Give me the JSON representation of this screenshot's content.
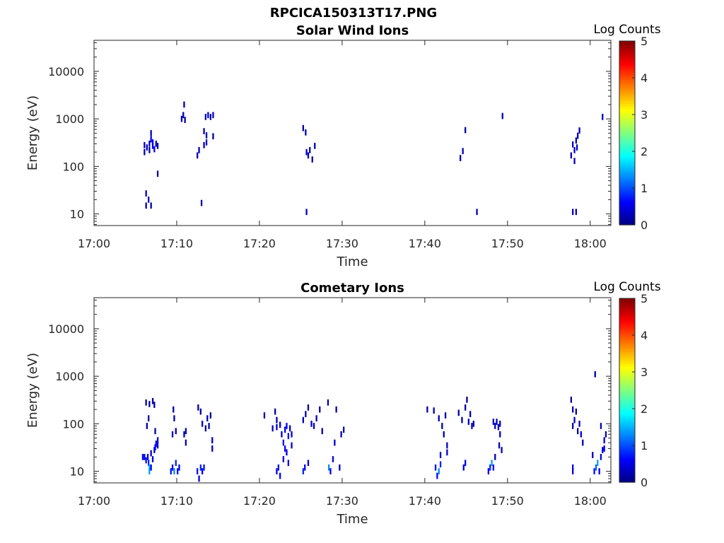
{
  "figure": {
    "title": "RPCICA150313T17.PNG",
    "colors": {
      "axis": "#262626",
      "background": "#ffffff"
    }
  },
  "chart_data": [
    {
      "type": "heatmap",
      "title": "Solar Wind Ions",
      "xlabel": "Time",
      "ylabel": "Energy (eV)",
      "x_unit": "minutes after 17:00",
      "x_ticks": [
        "17:00",
        "17:10",
        "17:20",
        "17:30",
        "17:40",
        "17:50",
        "18:00"
      ],
      "x_tick_values": [
        0,
        10,
        20,
        30,
        40,
        50,
        60
      ],
      "xlim": [
        0,
        62.5
      ],
      "y_scale": "log",
      "y_ticks": [
        "10",
        "100",
        "1000",
        "10000"
      ],
      "y_tick_values": [
        10,
        100,
        1000,
        10000
      ],
      "ylim": [
        5.7,
        45000
      ],
      "colorbar": {
        "label": "Log Counts",
        "range": [
          0,
          5
        ],
        "ticks": [
          "0",
          "1",
          "2",
          "3",
          "4",
          "5"
        ],
        "colormap": "jet"
      },
      "cells": [
        [
          6.0,
          200,
          0.3
        ],
        [
          6.0,
          280,
          0.3
        ],
        [
          6.3,
          250,
          0.2
        ],
        [
          6.6,
          300,
          0.4
        ],
        [
          6.6,
          220,
          0.3
        ],
        [
          6.8,
          370,
          0.5
        ],
        [
          6.8,
          500,
          0.3
        ],
        [
          7.0,
          270,
          0.6
        ],
        [
          7.0,
          320,
          0.4
        ],
        [
          7.2,
          230,
          0.5
        ],
        [
          7.4,
          300,
          0.3
        ],
        [
          7.6,
          270,
          0.2
        ],
        [
          7.6,
          70,
          0.2
        ],
        [
          6.2,
          27,
          0.3
        ],
        [
          6.2,
          15,
          0.2
        ],
        [
          6.5,
          20,
          0.3
        ],
        [
          6.8,
          15,
          0.2
        ],
        [
          10.5,
          1000,
          0.3
        ],
        [
          10.7,
          1200,
          0.3
        ],
        [
          10.9,
          950,
          0.2
        ],
        [
          10.8,
          2000,
          0.2
        ],
        [
          12.4,
          170,
          0.3
        ],
        [
          12.6,
          220,
          0.3
        ],
        [
          12.9,
          17,
          0.2
        ],
        [
          13.2,
          550,
          0.3
        ],
        [
          13.2,
          280,
          0.2
        ],
        [
          13.5,
          320,
          0.3
        ],
        [
          13.5,
          450,
          0.2
        ],
        [
          13.4,
          1100,
          0.3
        ],
        [
          13.7,
          1200,
          0.4
        ],
        [
          14.0,
          1100,
          0.3
        ],
        [
          14.3,
          1200,
          0.3
        ],
        [
          14.3,
          430,
          0.2
        ],
        [
          25.2,
          640,
          0.2
        ],
        [
          25.5,
          520,
          0.3
        ],
        [
          25.6,
          200,
          0.4
        ],
        [
          25.8,
          170,
          0.3
        ],
        [
          26.0,
          220,
          0.3
        ],
        [
          26.3,
          140,
          0.2
        ],
        [
          26.6,
          270,
          0.3
        ],
        [
          25.6,
          11,
          0.3
        ],
        [
          44.2,
          150,
          0.3
        ],
        [
          44.5,
          210,
          0.3
        ],
        [
          44.8,
          580,
          0.2
        ],
        [
          46.2,
          11,
          0.3
        ],
        [
          49.3,
          1150,
          0.3
        ],
        [
          57.6,
          170,
          0.3
        ],
        [
          57.8,
          290,
          0.4
        ],
        [
          58.0,
          220,
          0.5
        ],
        [
          58.2,
          350,
          0.3
        ],
        [
          58.3,
          250,
          0.3
        ],
        [
          58.4,
          440,
          0.3
        ],
        [
          58.6,
          570,
          0.3
        ],
        [
          58.0,
          130,
          0.3
        ],
        [
          57.8,
          11,
          0.3
        ],
        [
          58.2,
          11,
          0.3
        ],
        [
          61.4,
          1100,
          0.3
        ]
      ]
    },
    {
      "type": "heatmap",
      "title": "Cometary Ions",
      "xlabel": "Time",
      "ylabel": "Energy (eV)",
      "x_unit": "minutes after 17:00",
      "x_ticks": [
        "17:00",
        "17:10",
        "17:20",
        "17:30",
        "17:40",
        "17:50",
        "18:00"
      ],
      "x_tick_values": [
        0,
        10,
        20,
        30,
        40,
        50,
        60
      ],
      "xlim": [
        0,
        62.5
      ],
      "y_scale": "log",
      "y_ticks": [
        "10",
        "100",
        "1000",
        "10000"
      ],
      "y_tick_values": [
        10,
        100,
        1000,
        10000
      ],
      "ylim": [
        5.7,
        45000
      ],
      "colorbar": {
        "label": "Log Counts",
        "range": [
          0,
          5
        ],
        "ticks": [
          "0",
          "1",
          "2",
          "3",
          "4",
          "5"
        ],
        "colormap": "jet"
      },
      "cells": [
        [
          5.8,
          20,
          0.6
        ],
        [
          6.0,
          20,
          0.5
        ],
        [
          6.2,
          17,
          0.7
        ],
        [
          6.4,
          20,
          0.5
        ],
        [
          6.5,
          15,
          0.8
        ],
        [
          6.6,
          12,
          1.5
        ],
        [
          6.6,
          10,
          1.4
        ],
        [
          6.8,
          12,
          0.6
        ],
        [
          6.8,
          24,
          0.4
        ],
        [
          7.0,
          18,
          0.5
        ],
        [
          7.2,
          28,
          0.4
        ],
        [
          7.3,
          32,
          0.6
        ],
        [
          7.4,
          38,
          0.6
        ],
        [
          7.6,
          45,
          0.4
        ],
        [
          7.6,
          35,
          0.4
        ],
        [
          6.2,
          280,
          0.2
        ],
        [
          6.6,
          260,
          0.2
        ],
        [
          7.0,
          300,
          0.2
        ],
        [
          7.2,
          250,
          0.2
        ],
        [
          6.5,
          130,
          0.2
        ],
        [
          6.3,
          90,
          0.2
        ],
        [
          7.3,
          70,
          0.2
        ],
        [
          9.2,
          10,
          0.7
        ],
        [
          9.4,
          12,
          0.6
        ],
        [
          9.6,
          10,
          1.3
        ],
        [
          9.8,
          15,
          0.8
        ],
        [
          10.0,
          10,
          0.6
        ],
        [
          10.2,
          12,
          0.6
        ],
        [
          9.4,
          60,
          0.2
        ],
        [
          9.8,
          70,
          0.2
        ],
        [
          9.5,
          200,
          0.2
        ],
        [
          9.6,
          130,
          0.2
        ],
        [
          10.8,
          60,
          0.2
        ],
        [
          11.0,
          40,
          0.3
        ],
        [
          11.0,
          70,
          0.2
        ],
        [
          12.4,
          10,
          0.7
        ],
        [
          12.6,
          7,
          0.5
        ],
        [
          12.8,
          12,
          0.8
        ],
        [
          13.0,
          10,
          0.6
        ],
        [
          13.2,
          12,
          0.7
        ],
        [
          12.5,
          220,
          0.2
        ],
        [
          12.8,
          180,
          0.2
        ],
        [
          13.0,
          100,
          0.3
        ],
        [
          13.4,
          80,
          0.2
        ],
        [
          13.6,
          130,
          0.2
        ],
        [
          13.8,
          90,
          0.2
        ],
        [
          14.0,
          150,
          0.2
        ],
        [
          14.2,
          45,
          0.3
        ],
        [
          14.2,
          30,
          0.3
        ],
        [
          20.5,
          150,
          0.2
        ],
        [
          21.5,
          80,
          0.3
        ],
        [
          22.0,
          10,
          0.5
        ],
        [
          22.2,
          12,
          0.7
        ],
        [
          22.4,
          8,
          0.6
        ],
        [
          22.0,
          85,
          0.4
        ],
        [
          22.4,
          95,
          0.4
        ],
        [
          22.6,
          60,
          0.5
        ],
        [
          22.8,
          40,
          0.6
        ],
        [
          22.8,
          18,
          0.5
        ],
        [
          23.0,
          30,
          0.6
        ],
        [
          23.0,
          75,
          0.5
        ],
        [
          23.2,
          90,
          0.6
        ],
        [
          23.2,
          25,
          0.5
        ],
        [
          23.4,
          55,
          0.6
        ],
        [
          23.4,
          15,
          0.5
        ],
        [
          23.6,
          80,
          0.4
        ],
        [
          23.8,
          60,
          0.5
        ],
        [
          23.8,
          35,
          0.5
        ],
        [
          21.8,
          180,
          0.2
        ],
        [
          22.0,
          120,
          0.2
        ],
        [
          25.2,
          10,
          0.8
        ],
        [
          25.4,
          12,
          0.5
        ],
        [
          25.8,
          15,
          0.4
        ],
        [
          25.2,
          120,
          0.3
        ],
        [
          25.5,
          160,
          0.2
        ],
        [
          25.8,
          220,
          0.2
        ],
        [
          26.2,
          100,
          0.3
        ],
        [
          26.5,
          90,
          0.3
        ],
        [
          26.8,
          130,
          0.2
        ],
        [
          27.2,
          200,
          0.2
        ],
        [
          27.5,
          70,
          0.2
        ],
        [
          28.2,
          280,
          0.2
        ],
        [
          28.3,
          12,
          1.3
        ],
        [
          28.5,
          10,
          0.6
        ],
        [
          28.8,
          18,
          0.5
        ],
        [
          29.0,
          40,
          0.4
        ],
        [
          29.2,
          200,
          0.2
        ],
        [
          29.8,
          60,
          0.3
        ],
        [
          30.1,
          75,
          0.3
        ],
        [
          29.6,
          12,
          0.4
        ]
      ],
      "cells_b": [
        [
          40.2,
          200,
          0.2
        ],
        [
          41.0,
          190,
          0.2
        ],
        [
          41.2,
          12,
          0.7
        ],
        [
          41.4,
          8,
          0.6
        ],
        [
          41.6,
          10,
          1.3
        ],
        [
          41.8,
          14,
          0.8
        ],
        [
          41.8,
          22,
          0.4
        ],
        [
          41.6,
          130,
          0.3
        ],
        [
          42.0,
          90,
          0.2
        ],
        [
          42.2,
          60,
          0.3
        ],
        [
          42.4,
          150,
          0.2
        ],
        [
          42.6,
          35,
          0.3
        ],
        [
          42.6,
          25,
          0.4
        ],
        [
          44.0,
          170,
          0.2
        ],
        [
          44.4,
          120,
          0.2
        ],
        [
          44.8,
          220,
          0.2
        ],
        [
          45.0,
          320,
          0.2
        ],
        [
          45.2,
          110,
          0.3
        ],
        [
          45.4,
          160,
          0.2
        ],
        [
          45.6,
          90,
          0.3
        ],
        [
          45.8,
          100,
          0.2
        ],
        [
          44.6,
          12,
          0.5
        ],
        [
          44.8,
          15,
          0.6
        ],
        [
          47.6,
          10,
          0.6
        ],
        [
          47.8,
          12,
          0.8
        ],
        [
          48.0,
          15,
          1.4
        ],
        [
          48.2,
          12,
          0.7
        ],
        [
          48.2,
          110,
          0.3
        ],
        [
          48.4,
          90,
          0.3
        ],
        [
          48.6,
          110,
          0.3
        ],
        [
          48.8,
          85,
          0.3
        ],
        [
          49.0,
          60,
          0.4
        ],
        [
          49.0,
          100,
          0.3
        ],
        [
          49.2,
          28,
          0.3
        ],
        [
          48.4,
          20,
          0.3
        ],
        [
          48.9,
          35,
          0.3
        ],
        [
          57.6,
          320,
          0.2
        ],
        [
          57.8,
          200,
          0.3
        ],
        [
          58.0,
          120,
          0.3
        ],
        [
          58.2,
          180,
          0.2
        ],
        [
          57.8,
          90,
          0.2
        ],
        [
          58.4,
          70,
          0.3
        ],
        [
          58.6,
          100,
          0.3
        ],
        [
          58.8,
          60,
          0.4
        ],
        [
          59.0,
          40,
          0.3
        ],
        [
          57.8,
          10,
          0.6
        ],
        [
          57.8,
          12,
          0.5
        ],
        [
          60.4,
          10,
          0.7
        ],
        [
          60.6,
          12,
          1.1
        ],
        [
          60.8,
          15,
          1.4
        ],
        [
          61.0,
          10,
          0.6
        ],
        [
          61.2,
          20,
          0.5
        ],
        [
          61.4,
          28,
          0.5
        ],
        [
          61.6,
          45,
          0.4
        ],
        [
          61.2,
          90,
          0.3
        ],
        [
          61.8,
          60,
          0.3
        ],
        [
          61.6,
          30,
          0.6
        ],
        [
          60.5,
          1100,
          0.2
        ],
        [
          60.2,
          22,
          0.3
        ]
      ]
    }
  ]
}
